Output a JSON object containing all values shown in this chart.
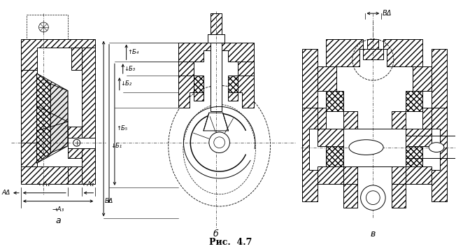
{
  "title": "Рис.  4.7",
  "bg_color": "#ffffff",
  "fig_width": 6.52,
  "fig_height": 3.56,
  "dpi": 100,
  "label_a": "а",
  "label_b": "б",
  "label_v": "в",
  "A_delta": "AΔ",
  "A1": "←А₁",
  "A2": "←А₂",
  "A3": "→А₃",
  "B4": "↑Б₄",
  "B3": "↓Б₃",
  "B2": "↓Б₂",
  "B5": "↑Б₅",
  "B1": "↓Б₁",
  "B_delta_b": "БΔ",
  "B_delta_v": "BΔ",
  "lc": "#000000",
  "hatch_lw": 0.4,
  "line_lw": 0.7
}
